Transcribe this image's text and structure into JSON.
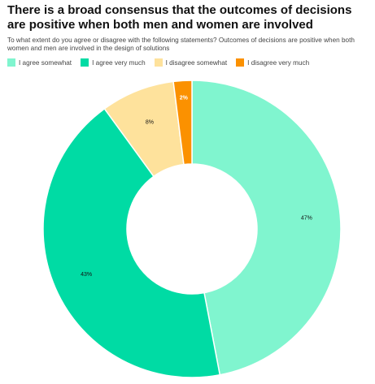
{
  "title": "There is a broad consensus that the outcomes of decisions are positive when both men and women are involved",
  "subtitle": "To what extent do you agree or disagree with the following statements? Outcomes of decisions are positive when both women and men are involved in the design of solutions",
  "chart_data": {
    "type": "pie",
    "variant": "donut",
    "title": "There is a broad consensus that the outcomes of decisions are positive when both men and women are involved",
    "subtitle": "To what extent do you agree or disagree with the following statements? Outcomes of decisions are positive when both women and men are involved in the design of solutions",
    "legend_position": "top-left",
    "slices": [
      {
        "name": "I agree somewhat",
        "value": 47,
        "label": "47%",
        "color": "#80f5cf"
      },
      {
        "name": "I agree very much",
        "value": 43,
        "label": "43%",
        "color": "#00dba4"
      },
      {
        "name": "I disagree somewhat",
        "value": 8,
        "label": "8%",
        "color": "#fee29c"
      },
      {
        "name": "I disagree very much",
        "value": 2,
        "label": "2%",
        "color": "#fb9100"
      }
    ]
  },
  "legend": [
    {
      "label": "I agree somewhat",
      "color": "#80f5cf"
    },
    {
      "label": "I agree very much",
      "color": "#00dba4"
    },
    {
      "label": "I disagree somewhat",
      "color": "#fee29c"
    },
    {
      "label": "I disagree very much",
      "color": "#fb9100"
    }
  ]
}
